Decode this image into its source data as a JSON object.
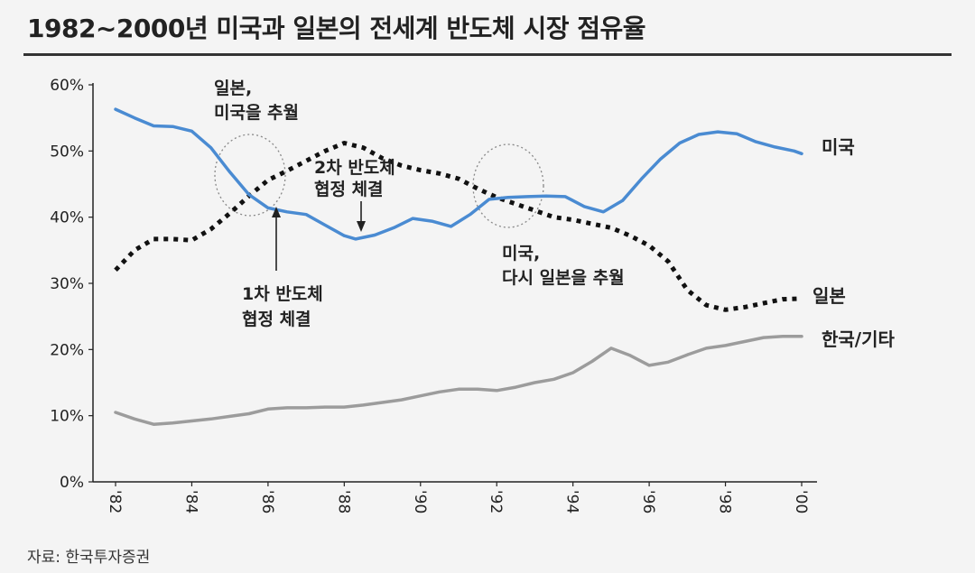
{
  "title": "1982~2000년 미국과 일본의 전세계 반도체 시장 점유율",
  "source": "자료: 한국투자증권",
  "chart_data": {
    "type": "line",
    "ylim": [
      0,
      60
    ],
    "xlim": [
      1982,
      2000
    ],
    "y_ticks": [
      "0%",
      "10%",
      "20%",
      "30%",
      "40%",
      "50%",
      "60%"
    ],
    "x_ticks": [
      "'82",
      "'84",
      "'86",
      "'88",
      "'90",
      "'92",
      "'94",
      "'96",
      "'98",
      "'00"
    ],
    "series": [
      {
        "name": "미국",
        "color": "#4a8bd2",
        "style": "solid",
        "x": [
          1982.0,
          1982.5,
          1983.0,
          1983.5,
          1984.0,
          1984.5,
          1985.0,
          1985.5,
          1986.0,
          1986.5,
          1987.0,
          1987.5,
          1988.0,
          1988.3,
          1988.8,
          1989.3,
          1989.8,
          1990.3,
          1990.8,
          1991.3,
          1991.8,
          1992.3,
          1992.8,
          1993.3,
          1993.8,
          1994.3,
          1994.8,
          1995.3,
          1995.8,
          1996.3,
          1996.8,
          1997.3,
          1997.8,
          1998.3,
          1998.8,
          1999.3,
          1999.8,
          2000.0
        ],
        "values": [
          56.3,
          55.0,
          53.8,
          53.7,
          53.0,
          50.5,
          46.8,
          43.4,
          41.4,
          40.8,
          40.4,
          38.8,
          37.2,
          36.7,
          37.3,
          38.4,
          39.8,
          39.4,
          38.6,
          40.4,
          42.7,
          43.0,
          43.1,
          43.2,
          43.1,
          41.6,
          40.8,
          42.5,
          45.8,
          48.8,
          51.2,
          52.5,
          52.9,
          52.6,
          51.4,
          50.6,
          50.0,
          49.6
        ]
      },
      {
        "name": "일본",
        "color": "#111111",
        "style": "dotted",
        "x": [
          1982.0,
          1982.5,
          1983.0,
          1983.5,
          1984.0,
          1984.5,
          1985.0,
          1985.5,
          1986.0,
          1986.5,
          1987.0,
          1987.5,
          1988.0,
          1988.5,
          1989.0,
          1989.5,
          1990.0,
          1990.5,
          1991.0,
          1991.5,
          1992.0,
          1992.5,
          1993.0,
          1993.5,
          1994.0,
          1994.5,
          1995.0,
          1995.5,
          1996.0,
          1996.5,
          1997.0,
          1997.5,
          1998.0,
          1998.5,
          1999.0,
          1999.5,
          2000.0
        ],
        "values": [
          32.0,
          35.0,
          36.7,
          36.7,
          36.5,
          38.2,
          40.6,
          43.2,
          45.6,
          47.0,
          48.5,
          50.0,
          51.2,
          50.5,
          48.9,
          47.8,
          47.1,
          46.6,
          45.8,
          44.3,
          43.0,
          42.0,
          41.0,
          40.0,
          39.6,
          39.0,
          38.4,
          37.2,
          35.7,
          33.3,
          29.0,
          26.7,
          26.0,
          26.4,
          27.0,
          27.6,
          27.7
        ]
      },
      {
        "name": "한국/기타",
        "color": "#9c9c9c",
        "style": "solid",
        "x": [
          1982.0,
          1982.5,
          1983.0,
          1983.5,
          1984.0,
          1984.5,
          1985.0,
          1985.5,
          1986.0,
          1986.5,
          1987.0,
          1987.5,
          1988.0,
          1988.5,
          1989.0,
          1989.5,
          1990.0,
          1990.5,
          1991.0,
          1991.5,
          1992.0,
          1992.5,
          1993.0,
          1993.5,
          1994.0,
          1994.5,
          1995.0,
          1995.5,
          1996.0,
          1996.5,
          1997.0,
          1997.5,
          1998.0,
          1998.5,
          1999.0,
          1999.5,
          2000.0
        ],
        "values": [
          10.5,
          9.5,
          8.7,
          8.9,
          9.2,
          9.5,
          9.9,
          10.3,
          11.0,
          11.2,
          11.2,
          11.3,
          11.3,
          11.6,
          12.0,
          12.4,
          13.0,
          13.6,
          14.0,
          14.0,
          13.8,
          14.3,
          15.0,
          15.5,
          16.5,
          18.2,
          20.2,
          19.1,
          17.6,
          18.1,
          19.2,
          20.2,
          20.6,
          21.2,
          21.8,
          22.0,
          22.0
        ]
      }
    ],
    "annotations": [
      {
        "lines": [
          "일본,",
          "미국을 추월"
        ]
      },
      {
        "lines": [
          "2차 반도체",
          "협정 체결"
        ]
      },
      {
        "lines": [
          "1차 반도체",
          "협정 체결"
        ]
      },
      {
        "lines": [
          "미국,",
          "다시 일본을 추월"
        ]
      }
    ],
    "grid": false,
    "legend": "inline labels at line ends"
  }
}
